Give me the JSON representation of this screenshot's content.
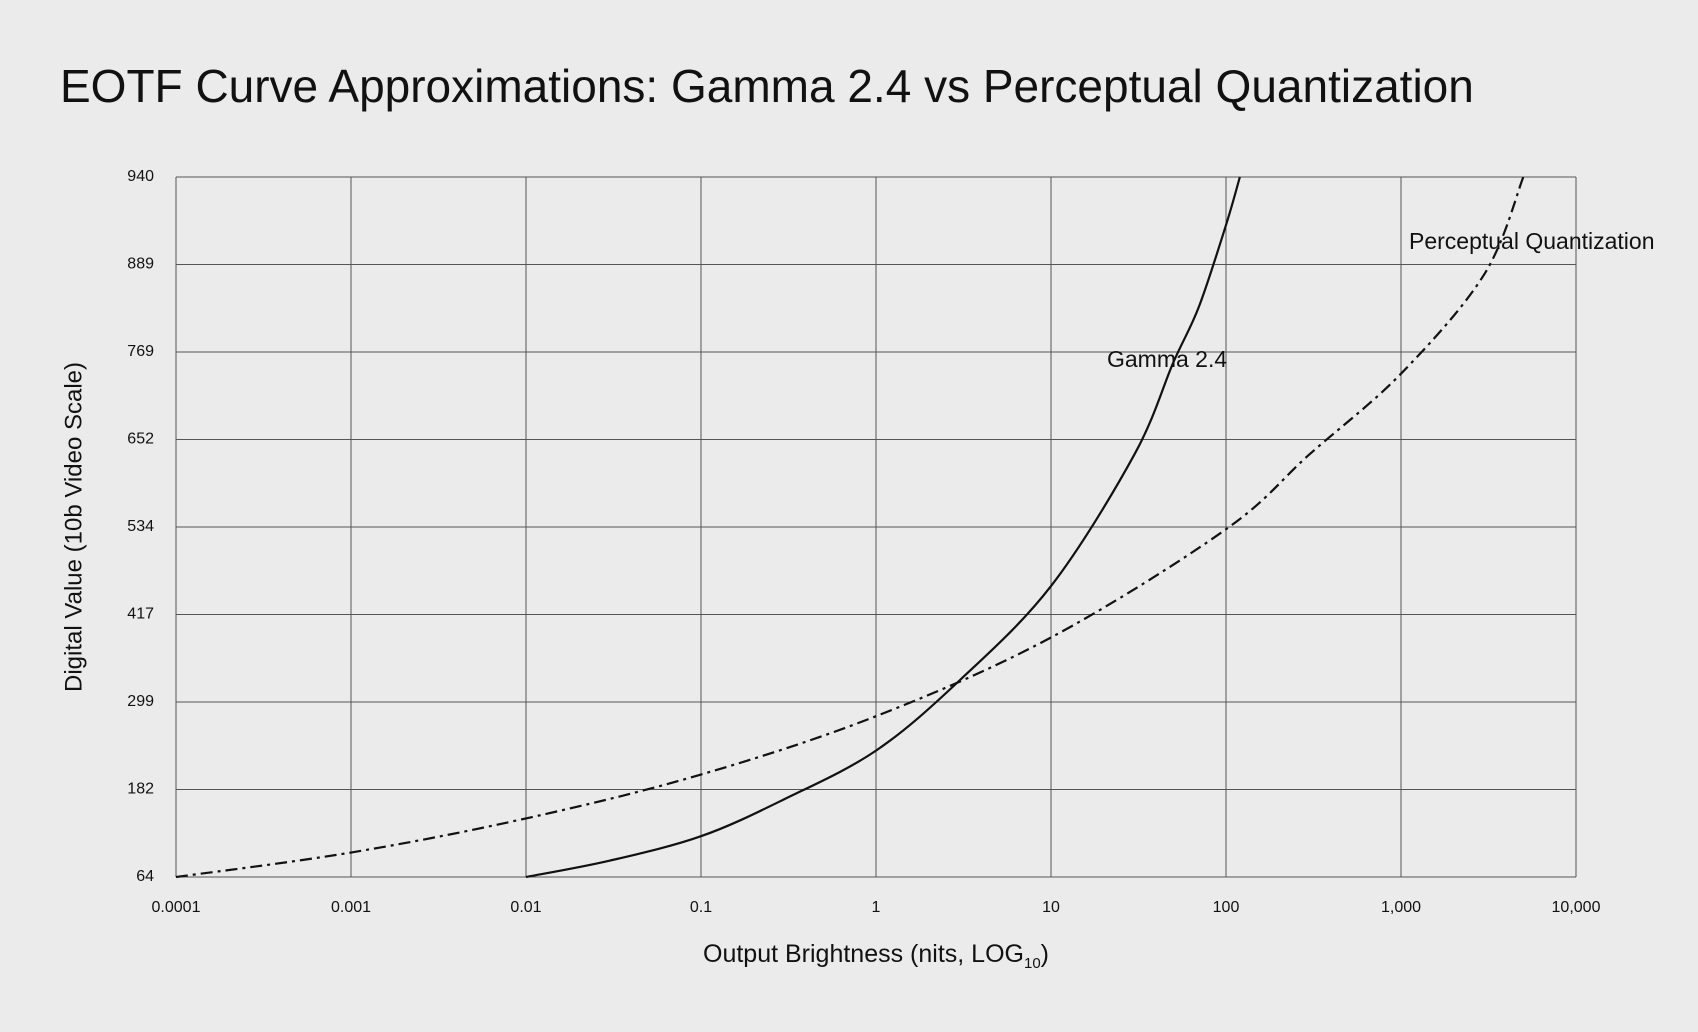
{
  "chart_data": {
    "type": "line",
    "title": "EOTF Curve Approximations: Gamma 2.4 vs Perceptual Quantization",
    "x_label": {
      "text": "Output Brightness (nits, LOG",
      "subscript": "10",
      "suffix": ")"
    },
    "y_label": "Digital Value (10b Video Scale)",
    "x_scale": "log",
    "xlim": [
      0.0001,
      10000
    ],
    "xticks": [
      0.0001,
      0.001,
      0.01,
      0.1,
      1,
      10,
      100,
      {
        "value": 1000,
        "label": "1,000"
      },
      {
        "value": 10000,
        "label": "10,000"
      }
    ],
    "ylim": [
      64,
      940
    ],
    "yticks": [
      64,
      182,
      299,
      417,
      534,
      652,
      769,
      889,
      940
    ],
    "grid": true,
    "series": [
      {
        "name": "Gamma 2.4",
        "color": "#111111",
        "style": "solid",
        "x": [
          0.01,
          0.03,
          0.1,
          0.3,
          1,
          3,
          10,
          30,
          50,
          70,
          100,
          120
        ],
        "values": [
          64,
          86,
          119,
          169,
          234,
          328,
          455,
          632,
          755,
          831,
          912,
          940
        ]
      },
      {
        "name": "Perceptual Quantization",
        "color": "#111111",
        "style": "dashdot",
        "x": [
          0.0001,
          0.001,
          0.01,
          0.1,
          1,
          10,
          100,
          300,
          1000,
          3000,
          5000
        ],
        "values": [
          64,
          97,
          143,
          202,
          280,
          386,
          531,
          632,
          740,
          876,
          940
        ]
      }
    ]
  }
}
